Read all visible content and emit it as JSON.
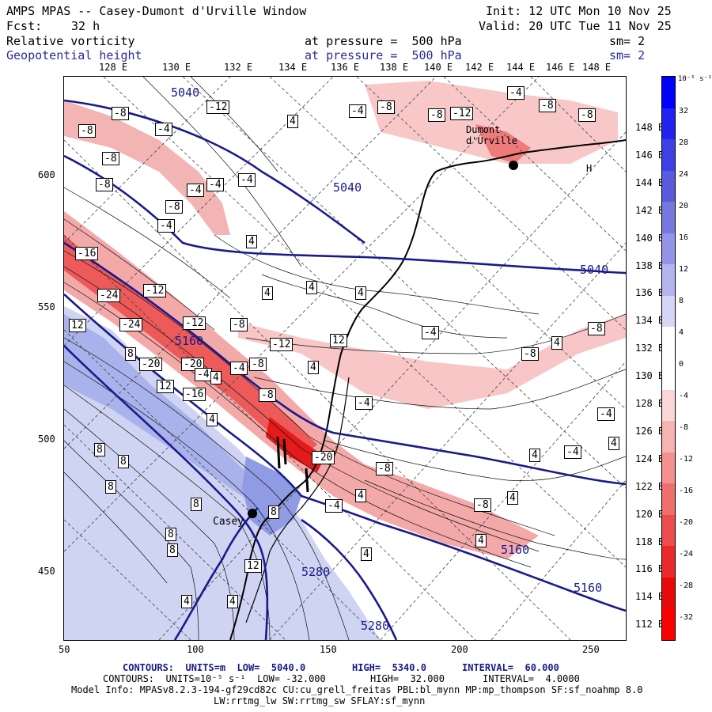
{
  "header": {
    "title": "AMPS MPAS -- Casey-Dumont d'Urville Window",
    "fcst_label": "Fcst:",
    "fcst_value": "32 h",
    "init": "Init: 12 UTC Mon 10 Nov 25",
    "valid": "Valid: 20 UTC Tue 11 Nov 25",
    "field1_name": "Relative vorticity",
    "field1_level": "at pressure =  500 hPa",
    "field1_sm": "sm= 2",
    "field2_name": "Geopotential height",
    "field2_level": "at pressure =  500 hPa",
    "field2_sm": "sm= 2"
  },
  "top_longitudes": [
    "128 E",
    "130 E",
    "132 E",
    "134 E",
    "136 E",
    "138 E",
    "140 E",
    "142 E",
    "144 E",
    "146 E",
    "148 E"
  ],
  "right_longitudes": [
    "148 E",
    "146 E",
    "144 E",
    "142 E",
    "140 E",
    "138 E",
    "136 E",
    "134 E",
    "132 E",
    "130 E",
    "128 E",
    "126 E",
    "124 E",
    "122 E",
    "120 E",
    "118 E",
    "116 E",
    "114 E",
    "112 E"
  ],
  "x_ticks": [
    "50",
    "100",
    "150",
    "200",
    "250"
  ],
  "y_ticks": [
    "600",
    "550",
    "500",
    "450"
  ],
  "colorbar": {
    "unit": "10⁻⁵ s⁻¹",
    "ticks": [
      "32",
      "28",
      "24",
      "20",
      "16",
      "12",
      "8",
      "4",
      "0",
      "-4",
      "-8",
      "-12",
      "-16",
      "-20",
      "-24",
      "-28",
      "-32"
    ],
    "colors": [
      "#0000ff",
      "#2222f0",
      "#3f3fe6",
      "#5a5adc",
      "#7777e0",
      "#9494e8",
      "#b4b4ee",
      "#d6d6f6",
      "#ffffff",
      "#ffffff",
      "#fbd6d6",
      "#f7b2b2",
      "#f39090",
      "#ef6e6e",
      "#ec4c4c",
      "#ea2a2a",
      "#e80a0a",
      "#ff0000"
    ]
  },
  "map_labels": {
    "height_contours": [
      "5040",
      "5040",
      "5040",
      "5160",
      "5160",
      "5160",
      "5280",
      "5280"
    ],
    "station_casey": "Casey",
    "station_dumont": "Dumont d'Urville",
    "station_h": "H"
  },
  "vorticity_boxes": [
    "-8",
    "-4",
    "-12",
    "-8",
    "-8",
    "-4",
    "-8",
    "-4",
    "4",
    "-4",
    "-8",
    "-8",
    "-12",
    "-4",
    "-8",
    "-8",
    "-8",
    "-4",
    "-16",
    "-24",
    "-12",
    "-4",
    "4",
    "4",
    "-24",
    "-12",
    "-8",
    "4",
    "4",
    "12",
    "-20",
    "-20",
    "-12",
    "-8",
    "-4",
    "4",
    "8",
    "12",
    "-16",
    "-4",
    "4",
    "-8",
    "4",
    "-4",
    "12",
    "-4",
    "8",
    "8",
    "8",
    "-20",
    "-8",
    "-4",
    "4",
    "8",
    "8",
    "8",
    "12",
    "8",
    "4",
    "4",
    "4",
    "-8",
    "4",
    "4",
    "-8",
    "4",
    "-8",
    "-4",
    "4",
    "-4",
    "4"
  ],
  "footer": {
    "line1_a": "CONTOURS:  UNITS=m  LOW=  5040.0",
    "line1_b": "HIGH=  5340.0",
    "line1_c": "INTERVAL=  60.000",
    "line2_a": "CONTOURS:  UNITS=10⁻⁵ s⁻¹  LOW= -32.000",
    "line2_b": "HIGH=  32.000",
    "line2_c": "INTERVAL=  4.0000",
    "model_info": "Model Info: MPASv8.2.3-194-gf29cd82c CU:cu_grell_freitas PBL:bl_mynn MP:mp_thompson SF:sf_noahmp 8.0",
    "model_info2": "LW:rrtmg_lw SW:rrtmg_sw SFLAY:sf_mynn"
  }
}
